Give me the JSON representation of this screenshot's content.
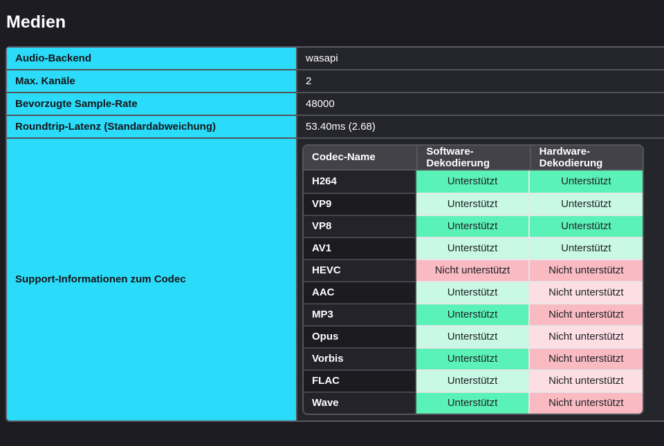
{
  "page": {
    "title": "Medien"
  },
  "info_rows": [
    {
      "label": "Audio-Backend",
      "value": "wasapi"
    },
    {
      "label": "Max. Kanäle",
      "value": "2"
    },
    {
      "label": "Bevorzugte Sample-Rate",
      "value": "48000"
    },
    {
      "label": "Roundtrip-Latenz (Standardabweichung)",
      "value": "53.40ms (2.68)"
    }
  ],
  "codec_section": {
    "label": "Support-Informationen zum Codec",
    "table": {
      "headers": [
        "Codec-Name",
        "Software-Dekodierung",
        "Hardware-Dekodierung"
      ],
      "supported_label": "Unterstützt",
      "not_supported_label": "Nicht unterstützt",
      "rows": [
        {
          "name": "H264",
          "software": "Unterstützt",
          "software_supported": true,
          "hardware": "Unterstützt",
          "hardware_supported": true
        },
        {
          "name": "VP9",
          "software": "Unterstützt",
          "software_supported": true,
          "hardware": "Unterstützt",
          "hardware_supported": true
        },
        {
          "name": "VP8",
          "software": "Unterstützt",
          "software_supported": true,
          "hardware": "Unterstützt",
          "hardware_supported": true
        },
        {
          "name": "AV1",
          "software": "Unterstützt",
          "software_supported": true,
          "hardware": "Unterstützt",
          "hardware_supported": true
        },
        {
          "name": "HEVC",
          "software": "Nicht unterstützt",
          "software_supported": false,
          "hardware": "Nicht unterstützt",
          "hardware_supported": false
        },
        {
          "name": "AAC",
          "software": "Unterstützt",
          "software_supported": true,
          "hardware": "Nicht unterstützt",
          "hardware_supported": false
        },
        {
          "name": "MP3",
          "software": "Unterstützt",
          "software_supported": true,
          "hardware": "Nicht unterstützt",
          "hardware_supported": false
        },
        {
          "name": "Opus",
          "software": "Unterstützt",
          "software_supported": true,
          "hardware": "Nicht unterstützt",
          "hardware_supported": false
        },
        {
          "name": "Vorbis",
          "software": "Unterstützt",
          "software_supported": true,
          "hardware": "Nicht unterstützt",
          "hardware_supported": false
        },
        {
          "name": "FLAC",
          "software": "Unterstützt",
          "software_supported": true,
          "hardware": "Nicht unterstützt",
          "hardware_supported": false
        },
        {
          "name": "Wave",
          "software": "Unterstützt",
          "software_supported": true,
          "hardware": "Nicht unterstützt",
          "hardware_supported": false
        }
      ]
    }
  },
  "colors": {
    "accent_cyan": "#2adcfa",
    "page_background": "#1c1c22",
    "value_cell_background": "#25252c",
    "supported_vivid": "#5bf2b7",
    "supported_pale": "#c9f8e4",
    "not_supported_vivid": "#f9bac1",
    "not_supported_pale": "#fcdee3"
  }
}
